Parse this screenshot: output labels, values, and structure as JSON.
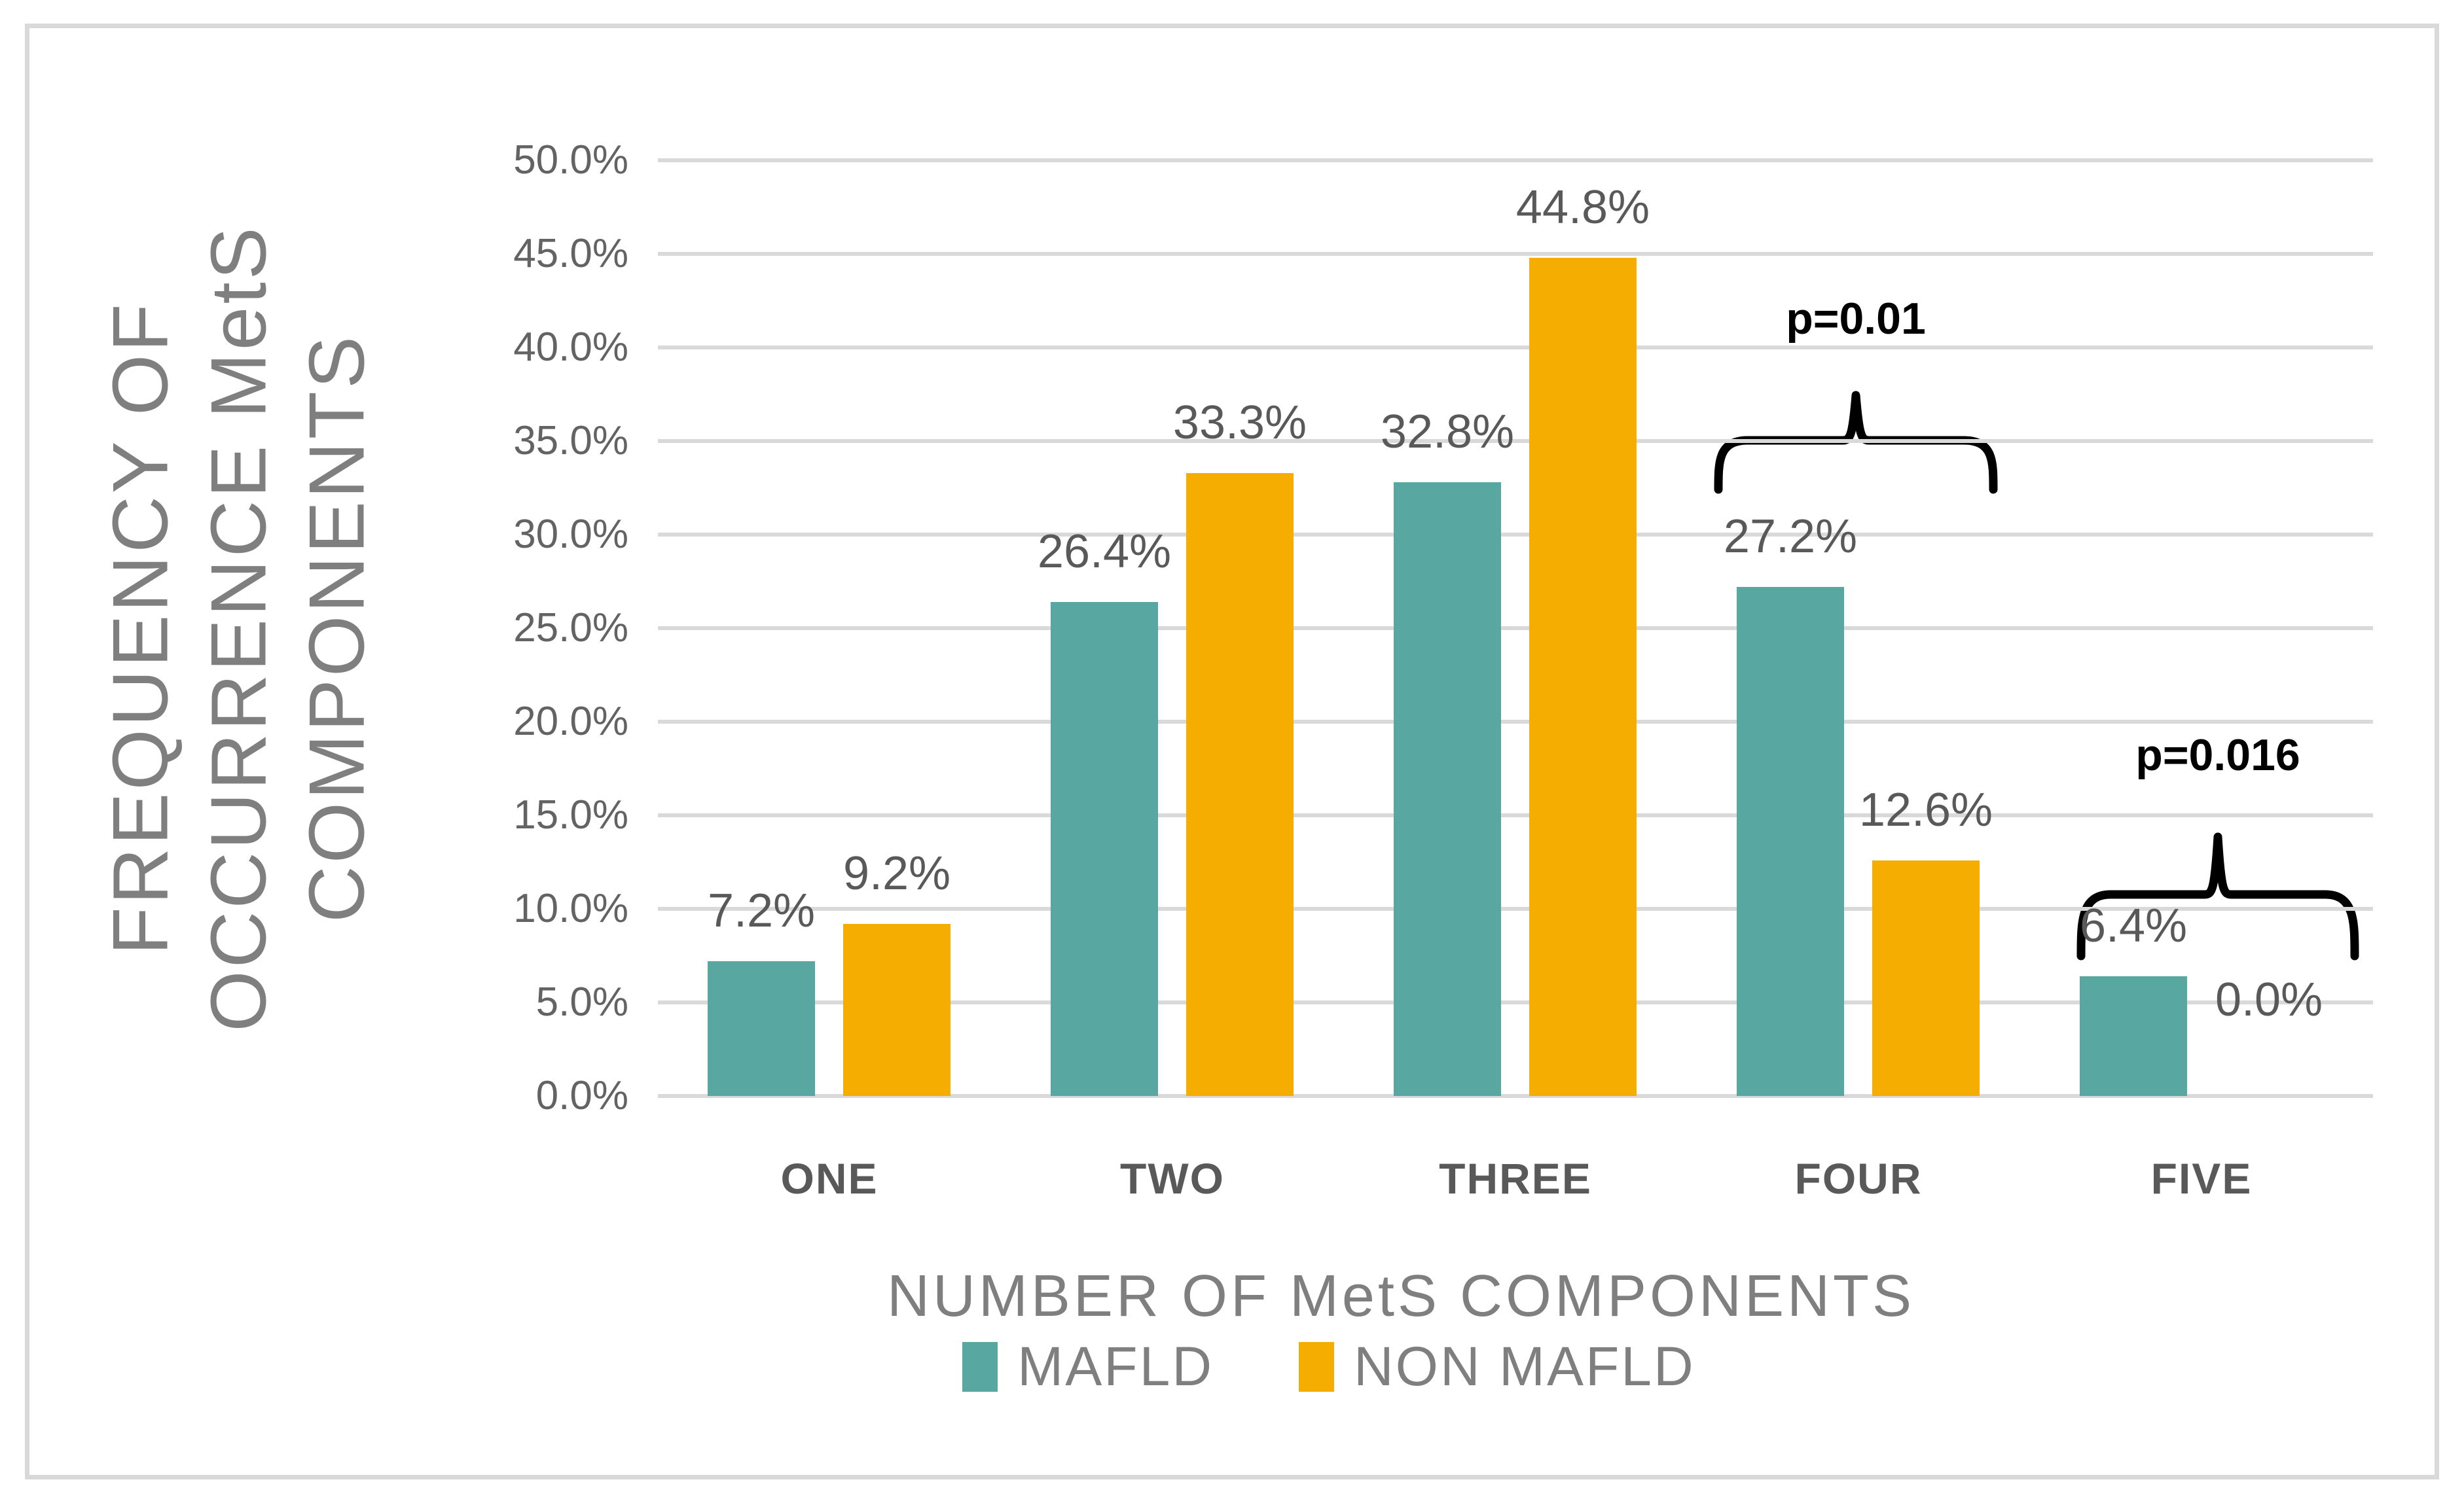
{
  "chart_data": {
    "type": "bar",
    "title": "",
    "categories": [
      "ONE",
      "TWO",
      "THREE",
      "FOUR",
      "FIVE"
    ],
    "series": [
      {
        "name": "MAFLD",
        "color": "#59A7A1",
        "values": [
          7.2,
          26.4,
          32.8,
          27.2,
          6.4
        ],
        "labels": [
          "7.2%",
          "26.4%",
          "32.8%",
          "27.2%",
          "6.4%"
        ]
      },
      {
        "name": "NON MAFLD",
        "color": "#F4AD00",
        "values": [
          9.2,
          33.3,
          44.8,
          12.6,
          0.0
        ],
        "labels": [
          "9.2%",
          "33.3%",
          "44.8%",
          "12.6%",
          "0.0%"
        ]
      }
    ],
    "xlabel": "NUMBER OF MetS COMPONENTS",
    "ylabel": "FREQUENCY OF OCCURRENCE MetS COMPONENTS",
    "ylabel_lines": [
      "FREQUENCY OF",
      "OCCURRENCE MetS",
      "COMPONENTS"
    ],
    "ylim": [
      0,
      50
    ],
    "ytick_step": 5,
    "yticks": [
      "50.0%",
      "45.0%",
      "40.0%",
      "35.0%",
      "30.0%",
      "25.0%",
      "20.0%",
      "15.0%",
      "10.0%",
      "5.0%",
      "0.0%"
    ],
    "grid": true,
    "legend_position": "bottom",
    "annotations": [
      {
        "text": "p=0.01",
        "target_category": "FOUR",
        "spans": "MAFLD vs NON MAFLD bars"
      },
      {
        "text": "p=0.016",
        "target_category": "FIVE",
        "spans": "MAFLD vs NON MAFLD bars"
      }
    ]
  },
  "colors": {
    "mafld_teal": "#59A7A1",
    "non_mafld_orange": "#F4AD00",
    "gridline": "#D9D9D9",
    "frame_border": "#D9D9D9",
    "tick_text": "#636363",
    "data_label_text": "#595959",
    "axis_title_text": "#7F7F7F",
    "annotation_text": "#000000"
  }
}
